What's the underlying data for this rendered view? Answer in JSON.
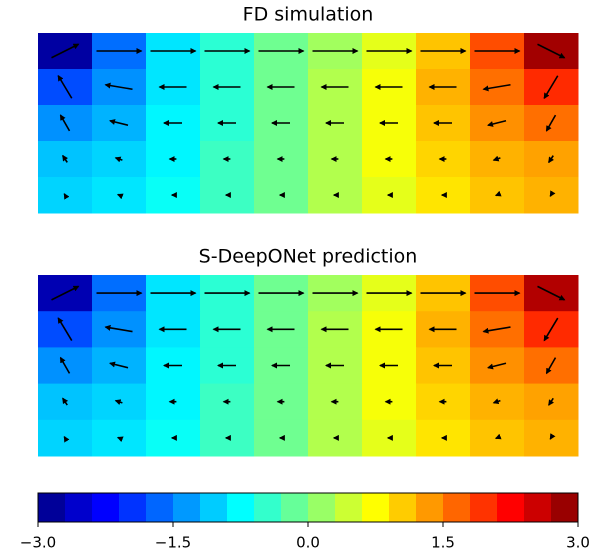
{
  "chart_data": [
    {
      "type": "quiver-contour",
      "title": "FD simulation",
      "clim": [
        -3,
        3
      ],
      "field": [
        [
          -2.8,
          -1.6,
          -0.9,
          -0.5,
          -0.1,
          0.2,
          0.6,
          1.1,
          1.8,
          2.8
        ],
        [
          -1.8,
          -1.4,
          -0.9,
          -0.5,
          -0.1,
          0.3,
          0.7,
          1.2,
          1.6,
          2.0
        ],
        [
          -1.4,
          -1.2,
          -0.8,
          -0.5,
          -0.1,
          0.3,
          0.7,
          1.1,
          1.4,
          1.6
        ],
        [
          -1.1,
          -1.0,
          -0.8,
          -0.4,
          -0.1,
          0.3,
          0.7,
          1.0,
          1.2,
          1.3
        ],
        [
          -1.0,
          -0.9,
          -0.7,
          -0.4,
          -0.1,
          0.3,
          0.6,
          0.9,
          1.1,
          1.2
        ]
      ],
      "u": [
        [
          0.6,
          1,
          1,
          1,
          1,
          1,
          1,
          1,
          1,
          0.6
        ],
        [
          -0.3,
          -0.6,
          -0.6,
          -0.6,
          -0.6,
          -0.6,
          -0.6,
          -0.6,
          -0.6,
          -0.3
        ],
        [
          -0.2,
          -0.4,
          -0.4,
          -0.4,
          -0.4,
          -0.4,
          -0.4,
          -0.4,
          -0.4,
          -0.2
        ],
        [
          -0.1,
          -0.15,
          -0.15,
          -0.15,
          -0.15,
          -0.15,
          -0.15,
          -0.15,
          -0.15,
          -0.1
        ],
        [
          -0.03,
          -0.05,
          -0.05,
          -0.05,
          -0.05,
          -0.05,
          -0.05,
          -0.05,
          -0.05,
          -0.03
        ]
      ],
      "v": [
        [
          0.3,
          0,
          0,
          0,
          0,
          0,
          0,
          0,
          0,
          -0.3
        ],
        [
          0.5,
          0.1,
          0,
          0,
          0,
          0,
          0,
          0,
          -0.1,
          -0.5
        ],
        [
          0.35,
          0.1,
          0,
          0,
          0,
          0,
          0,
          0,
          -0.1,
          -0.35
        ],
        [
          0.15,
          0.05,
          0,
          0,
          0,
          0,
          0,
          0,
          -0.05,
          -0.15
        ],
        [
          0.05,
          0.02,
          0,
          0,
          0,
          0,
          0,
          0,
          -0.02,
          -0.05
        ]
      ]
    },
    {
      "type": "quiver-contour",
      "title": "S-DeepONet prediction",
      "clim": [
        -3,
        3
      ],
      "field": [
        [
          -2.7,
          -1.6,
          -0.9,
          -0.5,
          -0.1,
          0.2,
          0.6,
          1.1,
          1.8,
          2.7
        ],
        [
          -1.8,
          -1.4,
          -0.9,
          -0.5,
          -0.1,
          0.3,
          0.7,
          1.2,
          1.6,
          2.0
        ],
        [
          -1.4,
          -1.2,
          -0.8,
          -0.5,
          -0.1,
          0.3,
          0.7,
          1.1,
          1.4,
          1.6
        ],
        [
          -1.1,
          -1.0,
          -0.8,
          -0.4,
          -0.1,
          0.3,
          0.7,
          1.0,
          1.2,
          1.3
        ],
        [
          -1.0,
          -0.9,
          -0.7,
          -0.4,
          -0.1,
          0.3,
          0.6,
          0.9,
          1.1,
          1.2
        ]
      ],
      "u": [
        [
          0.6,
          1,
          1,
          1,
          1,
          1,
          1,
          1,
          1,
          0.6
        ],
        [
          -0.3,
          -0.6,
          -0.6,
          -0.6,
          -0.6,
          -0.6,
          -0.6,
          -0.6,
          -0.6,
          -0.3
        ],
        [
          -0.2,
          -0.4,
          -0.4,
          -0.4,
          -0.4,
          -0.4,
          -0.4,
          -0.4,
          -0.4,
          -0.2
        ],
        [
          -0.1,
          -0.15,
          -0.15,
          -0.15,
          -0.15,
          -0.15,
          -0.15,
          -0.15,
          -0.15,
          -0.1
        ],
        [
          -0.03,
          -0.05,
          -0.05,
          -0.05,
          -0.05,
          -0.05,
          -0.05,
          -0.05,
          -0.05,
          -0.03
        ]
      ],
      "v": [
        [
          0.3,
          0,
          0,
          0,
          0,
          0,
          0,
          0,
          0,
          -0.3
        ],
        [
          0.5,
          0.1,
          0,
          0,
          0,
          0,
          0,
          0,
          -0.1,
          -0.5
        ],
        [
          0.35,
          0.1,
          0,
          0,
          0,
          0,
          0,
          0,
          -0.1,
          -0.35
        ],
        [
          0.15,
          0.05,
          0,
          0,
          0,
          0,
          0,
          0,
          -0.05,
          -0.15
        ],
        [
          0.05,
          0.02,
          0,
          0,
          0,
          0,
          0,
          0,
          -0.02,
          -0.05
        ]
      ]
    },
    {
      "type": "colorbar",
      "clim": [
        -3,
        3
      ],
      "levels": 20,
      "ticks": [
        {
          "value": -3,
          "label": "−3.0"
        },
        {
          "value": -1.5,
          "label": "−1.5"
        },
        {
          "value": 0,
          "label": "0.0"
        },
        {
          "value": 1.5,
          "label": "1.5"
        },
        {
          "value": 3,
          "label": "3.0"
        }
      ]
    }
  ]
}
